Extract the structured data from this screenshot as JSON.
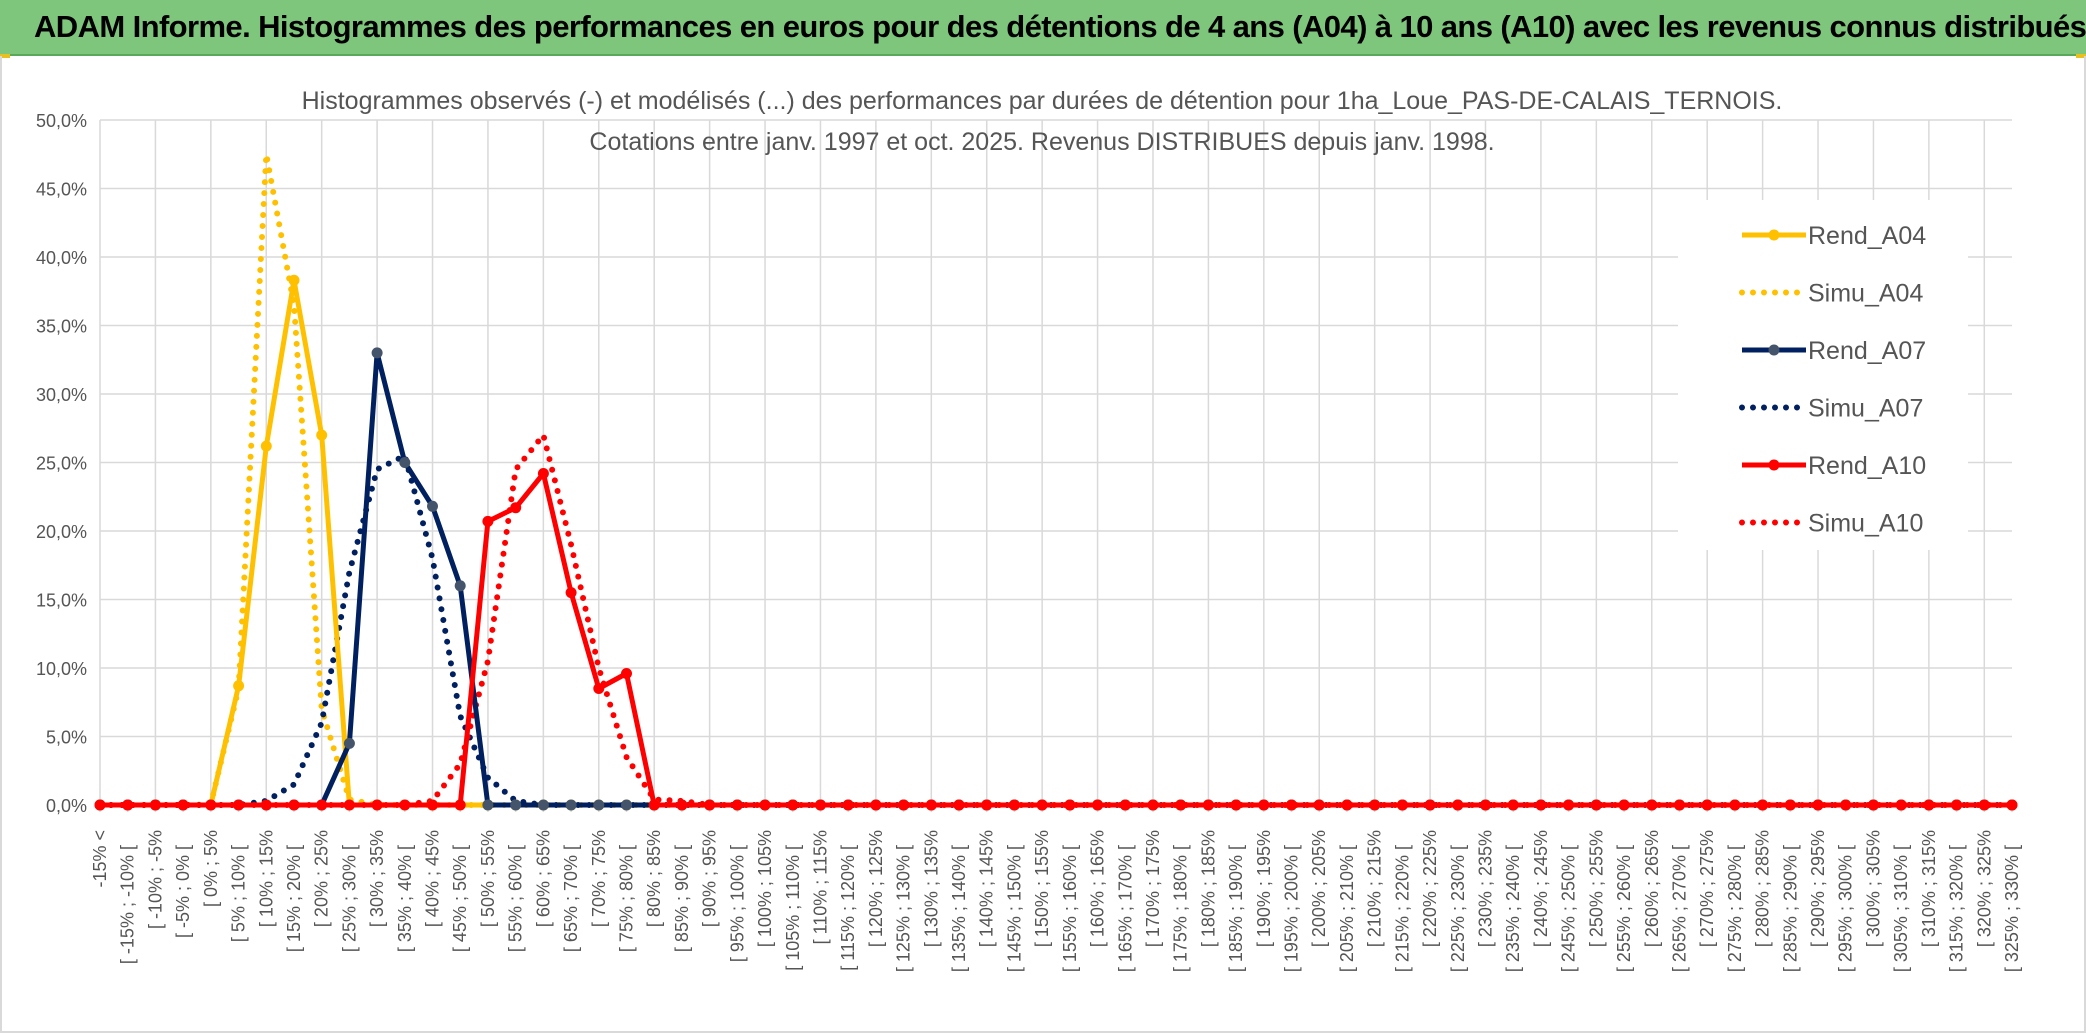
{
  "banner": {
    "title": "ADAM Informe. Histogrammes des performances en euros pour des détentions de 4 ans (A04) à 10 ans (A10) avec les revenus connus distribués"
  },
  "colors": {
    "banner_bg": "#7dc67b",
    "A04": "#ffc000",
    "A07": "#002060",
    "A07_marker": "#44546a",
    "A10": "#ff0000",
    "grid": "#d9d9d9"
  },
  "chart_data": {
    "type": "line",
    "title": [
      "Histogrammes observés (-) et modélisés (...) des performances par durées de détention pour 1ha_Loue_PAS-DE-CALAIS_TERNOIS.",
      "Cotations entre janv. 1997 et oct. 2025. Revenus DISTRIBUES depuis janv. 1998."
    ],
    "xlabel": "",
    "ylabel": "",
    "ylim": [
      0,
      50
    ],
    "y_ticks": [
      "0,0%",
      "5,0%",
      "10,0%",
      "15,0%",
      "20,0%",
      "25,0%",
      "30,0%",
      "35,0%",
      "40,0%",
      "45,0%",
      "50,0%"
    ],
    "grid": true,
    "legend_position": "right",
    "categories": [
      "-15% <",
      "[ -15% ; -10% [",
      "[ -10% ; -5%",
      "[ -5% ; 0% [",
      "[ 0% ; 5%",
      "[ 5% ; 10% [",
      "[ 10% ; 15%",
      "[ 15% ; 20% [",
      "[ 20% ; 25%",
      "[ 25% ; 30% [",
      "[ 30% ; 35%",
      "[ 35% ; 40% [",
      "[ 40% ; 45%",
      "[ 45% ; 50% [",
      "[ 50% ; 55%",
      "[ 55% ; 60% [",
      "[ 60% ; 65%",
      "[ 65% ; 70% [",
      "[ 70% ; 75%",
      "[ 75% ; 80% [",
      "[ 80% ; 85%",
      "[ 85% ; 90% [",
      "[ 90% ; 95%",
      "[ 95% ; 100% [",
      "[ 100% ; 105%",
      "[ 105% ; 110% [",
      "[ 110% ; 115%",
      "[ 115% ; 120% [",
      "[ 120% ; 125%",
      "[ 125% ; 130% [",
      "[ 130% ; 135%",
      "[ 135% ; 140% [",
      "[ 140% ; 145%",
      "[ 145% ; 150% [",
      "[ 150% ; 155%",
      "[ 155% ; 160% [",
      "[ 160% ; 165%",
      "[ 165% ; 170% [",
      "[ 170% ; 175%",
      "[ 175% ; 180% [",
      "[ 180% ; 185%",
      "[ 185% ; 190% [",
      "[ 190% ; 195%",
      "[ 195% ; 200% [",
      "[ 200% ; 205%",
      "[ 205% ; 210% [",
      "[ 210% ; 215%",
      "[ 215% ; 220% [",
      "[ 220% ; 225%",
      "[ 225% ; 230% [",
      "[ 230% ; 235%",
      "[ 235% ; 240% [",
      "[ 240% ; 245%",
      "[ 245% ; 250% [",
      "[ 250% ; 255%",
      "[ 255% ; 260% [",
      "[ 260% ; 265%",
      "[ 265% ; 270% [",
      "[ 270% ; 275%",
      "[ 275% ; 280% [",
      "[ 280% ; 285%",
      "[ 285% ; 290% [",
      "[ 290% ; 295%",
      "[ 295% ; 300% [",
      "[ 300% ; 305%",
      "[ 305% ; 310% [",
      "[ 310% ; 315%",
      "[ 315% ; 320% [",
      "[ 320% ; 325%",
      "[ 325% ; 330% ["
    ],
    "series": [
      {
        "name": "Rend_A04",
        "style": "solid",
        "color": "#ffc000",
        "marker": "#ffc000",
        "values": [
          0,
          0,
          0,
          0,
          0,
          8.7,
          26.2,
          38.3,
          27.0,
          0,
          0,
          0,
          0,
          0,
          0,
          0,
          0,
          0,
          0,
          0,
          0,
          0,
          0,
          0,
          0,
          0,
          0,
          0,
          0,
          0,
          0,
          0,
          0,
          0,
          0,
          0,
          0,
          0,
          0,
          0,
          0,
          0,
          0,
          0,
          0,
          0,
          0,
          0,
          0,
          0,
          0,
          0,
          0,
          0,
          0,
          0,
          0,
          0,
          0,
          0,
          0,
          0,
          0,
          0,
          0,
          0,
          0,
          0,
          0,
          0
        ]
      },
      {
        "name": "Simu_A04",
        "style": "dotted",
        "color": "#ffc000",
        "values": [
          0,
          0,
          0,
          0,
          0.05,
          8.5,
          47.5,
          36.5,
          7.0,
          0.4,
          0,
          0,
          0,
          0,
          0,
          0,
          0,
          0,
          0,
          0,
          0,
          0,
          0,
          0,
          0,
          0,
          0,
          0,
          0,
          0,
          0,
          0,
          0,
          0,
          0,
          0,
          0,
          0,
          0,
          0,
          0,
          0,
          0,
          0,
          0,
          0,
          0,
          0,
          0,
          0,
          0,
          0,
          0,
          0,
          0,
          0,
          0,
          0,
          0,
          0,
          0,
          0,
          0,
          0,
          0,
          0,
          0,
          0,
          0,
          0
        ]
      },
      {
        "name": "Rend_A07",
        "style": "solid",
        "color": "#002060",
        "marker": "#44546a",
        "values": [
          0,
          0,
          0,
          0,
          0,
          0,
          0,
          0,
          0,
          4.5,
          33.0,
          25.0,
          21.8,
          16.0,
          0,
          0,
          0,
          0,
          0,
          0,
          0,
          0,
          0,
          0,
          0,
          0,
          0,
          0,
          0,
          0,
          0,
          0,
          0,
          0,
          0,
          0,
          0,
          0,
          0,
          0,
          0,
          0,
          0,
          0,
          0,
          0,
          0,
          0,
          0,
          0,
          0,
          0,
          0,
          0,
          0,
          0,
          0,
          0,
          0,
          0,
          0,
          0,
          0,
          0,
          0,
          0,
          0,
          0,
          0,
          0
        ]
      },
      {
        "name": "Simu_A07",
        "style": "dotted",
        "color": "#002060",
        "values": [
          0,
          0,
          0,
          0,
          0,
          0,
          0.3,
          1.5,
          6.0,
          17.0,
          24.5,
          25.5,
          18.0,
          6.5,
          2.0,
          0.3,
          0,
          0,
          0,
          0,
          0,
          0,
          0,
          0,
          0,
          0,
          0,
          0,
          0,
          0,
          0,
          0,
          0,
          0,
          0,
          0,
          0,
          0,
          0,
          0,
          0,
          0,
          0,
          0,
          0,
          0,
          0,
          0,
          0,
          0,
          0,
          0,
          0,
          0,
          0,
          0,
          0,
          0,
          0,
          0,
          0,
          0,
          0,
          0,
          0,
          0,
          0,
          0,
          0,
          0
        ]
      },
      {
        "name": "Rend_A10",
        "style": "solid",
        "color": "#ff0000",
        "marker": "#ff0000",
        "values": [
          0,
          0,
          0,
          0,
          0,
          0,
          0,
          0,
          0,
          0,
          0,
          0,
          0,
          0,
          20.7,
          21.7,
          24.2,
          15.5,
          8.5,
          9.6,
          0,
          0,
          0,
          0,
          0,
          0,
          0,
          0,
          0,
          0,
          0,
          0,
          0,
          0,
          0,
          0,
          0,
          0,
          0,
          0,
          0,
          0,
          0,
          0,
          0,
          0,
          0,
          0,
          0,
          0,
          0,
          0,
          0,
          0,
          0,
          0,
          0,
          0,
          0,
          0,
          0,
          0,
          0,
          0,
          0,
          0,
          0,
          0,
          0,
          0
        ]
      },
      {
        "name": "Simu_A10",
        "style": "dotted",
        "color": "#ff0000",
        "values": [
          0,
          0,
          0,
          0,
          0,
          0,
          0,
          0,
          0,
          0,
          0,
          0,
          0.3,
          3.0,
          10.5,
          24.5,
          27.0,
          19.0,
          10.0,
          3.5,
          0.4,
          0.3,
          0,
          0,
          0,
          0,
          0,
          0,
          0,
          0,
          0,
          0,
          0,
          0,
          0,
          0,
          0,
          0,
          0,
          0,
          0,
          0,
          0,
          0,
          0,
          0,
          0,
          0,
          0,
          0,
          0,
          0,
          0,
          0,
          0,
          0,
          0,
          0,
          0,
          0,
          0,
          0,
          0,
          0,
          0,
          0,
          0,
          0,
          0,
          0
        ]
      }
    ]
  }
}
